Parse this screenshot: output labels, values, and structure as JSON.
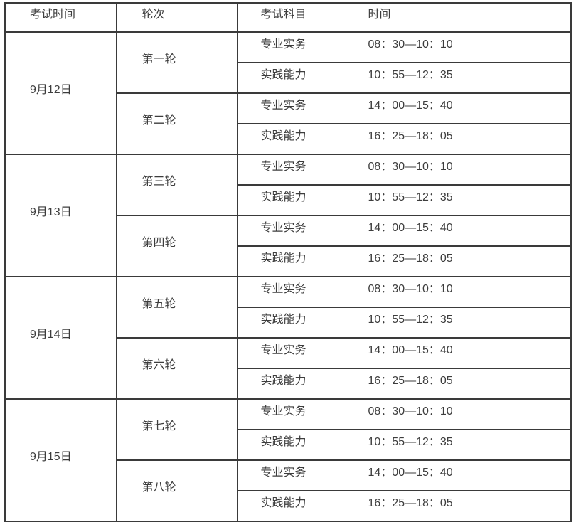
{
  "colors": {
    "border": "#3a3a3a",
    "text": "#3d3d3d",
    "background": "#ffffff"
  },
  "table": {
    "header": [
      "考试时间",
      "轮次",
      "考试科目",
      "时间"
    ],
    "groups": [
      {
        "date": "9月12日",
        "rounds": [
          {
            "label": "第一轮",
            "sessions": [
              {
                "subject": "专业实务",
                "time": "08：30—10：10"
              },
              {
                "subject": "实践能力",
                "time": "10：55—12：35"
              }
            ]
          },
          {
            "label": "第二轮",
            "sessions": [
              {
                "subject": "专业实务",
                "time": "14：00—15：40"
              },
              {
                "subject": "实践能力",
                "time": "16：25—18：05"
              }
            ]
          }
        ]
      },
      {
        "date": "9月13日",
        "rounds": [
          {
            "label": "第三轮",
            "sessions": [
              {
                "subject": "专业实务",
                "time": "08：30—10：10"
              },
              {
                "subject": "实践能力",
                "time": "10：55—12：35"
              }
            ]
          },
          {
            "label": "第四轮",
            "sessions": [
              {
                "subject": "专业实务",
                "time": "14：00—15：40"
              },
              {
                "subject": "实践能力",
                "time": "16：25—18：05"
              }
            ]
          }
        ]
      },
      {
        "date": "9月14日",
        "rounds": [
          {
            "label": "第五轮",
            "sessions": [
              {
                "subject": "专业实务",
                "time": "08：30—10：10"
              },
              {
                "subject": "实践能力",
                "time": "10：55—12：35"
              }
            ]
          },
          {
            "label": "第六轮",
            "sessions": [
              {
                "subject": "专业实务",
                "time": "14：00—15：40"
              },
              {
                "subject": "实践能力",
                "time": "16：25—18：05"
              }
            ]
          }
        ]
      },
      {
        "date": "9月15日",
        "rounds": [
          {
            "label": "第七轮",
            "sessions": [
              {
                "subject": "专业实务",
                "time": "08：30—10：10"
              },
              {
                "subject": "实践能力",
                "time": "10：55—12：35"
              }
            ]
          },
          {
            "label": "第八轮",
            "sessions": [
              {
                "subject": "专业实务",
                "time": "14：00—15：40"
              },
              {
                "subject": "实践能力",
                "time": "16：25—18：05"
              }
            ]
          }
        ]
      }
    ]
  }
}
